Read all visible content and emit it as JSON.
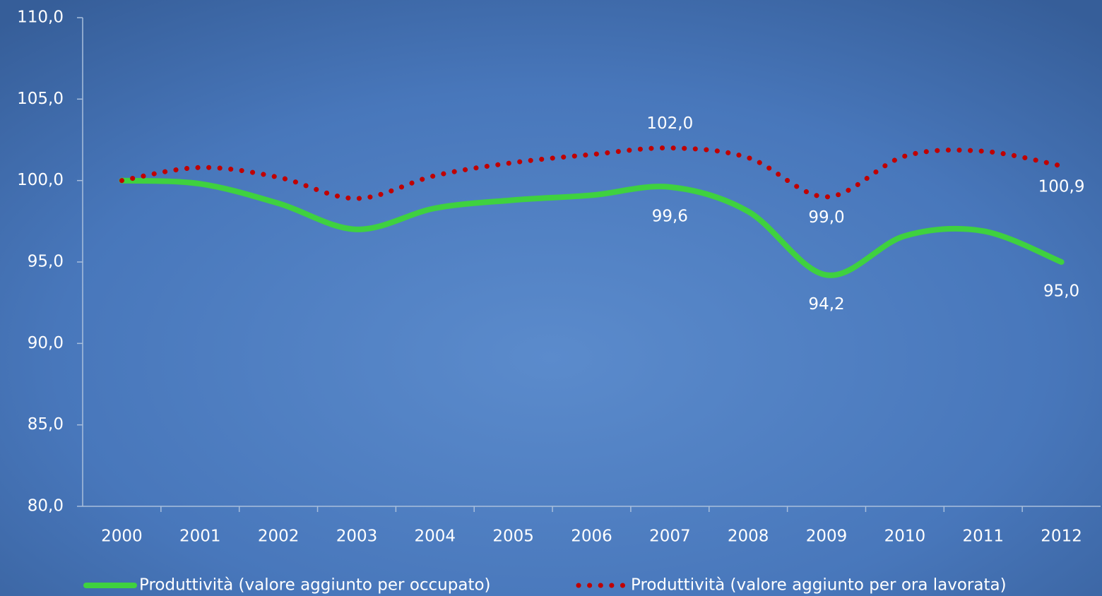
{
  "chart_data": {
    "type": "line",
    "categories": [
      "2000",
      "2001",
      "2002",
      "2003",
      "2004",
      "2005",
      "2006",
      "2007",
      "2008",
      "2009",
      "2010",
      "2011",
      "2012"
    ],
    "series": [
      {
        "name": "Produttività (valore aggiunto per occupato)",
        "color": "#3fd13f",
        "style": "solid",
        "values": [
          100.0,
          99.8,
          98.6,
          97.0,
          98.3,
          98.8,
          99.1,
          99.6,
          98.1,
          94.2,
          96.6,
          96.9,
          95.0
        ],
        "value_labels": [
          null,
          null,
          null,
          null,
          null,
          null,
          null,
          "99,6",
          null,
          "94,2",
          null,
          null,
          "95,0"
        ]
      },
      {
        "name": "Produttività (valore aggiunto per ora lavorata)",
        "color": "#c00000",
        "style": "dotted",
        "values": [
          100.0,
          100.8,
          100.2,
          98.9,
          100.3,
          101.1,
          101.6,
          102.0,
          101.4,
          99.0,
          101.5,
          101.8,
          100.9
        ],
        "value_labels": [
          null,
          null,
          null,
          null,
          null,
          null,
          null,
          "102,0",
          null,
          "99,0",
          null,
          null,
          "100,9"
        ]
      }
    ],
    "ylim": [
      80,
      110
    ],
    "yticks": [
      {
        "value": 80,
        "label": "80,0"
      },
      {
        "value": 85,
        "label": "85,0"
      },
      {
        "value": 90,
        "label": "90,0"
      },
      {
        "value": 95,
        "label": "95,0"
      },
      {
        "value": 100,
        "label": "100,0"
      },
      {
        "value": 105,
        "label": "105,0"
      },
      {
        "value": 110,
        "label": "110,0"
      }
    ],
    "smooth": true,
    "legend": "bottom"
  }
}
